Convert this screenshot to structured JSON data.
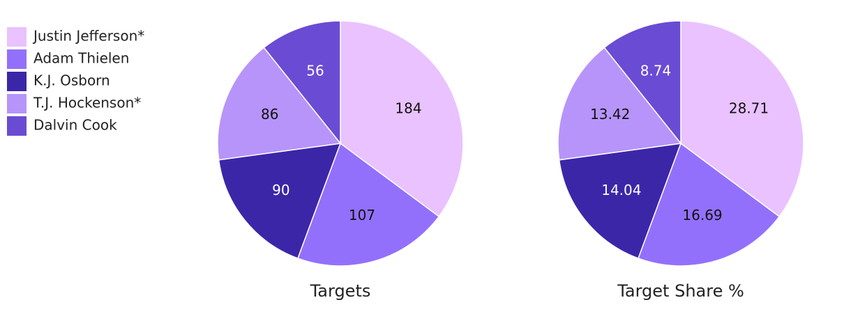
{
  "chart_data": [
    {
      "type": "pie",
      "title": "Targets",
      "categories": [
        "Justin Jefferson*",
        "Adam Thielen",
        "K.J. Osborn",
        "T.J. Hockenson*",
        "Dalvin Cook"
      ],
      "values": [
        184,
        107,
        90,
        86,
        56
      ],
      "colors": [
        "#e9c2ff",
        "#9370fb",
        "#3c26a8",
        "#b794fa",
        "#6a4bd3"
      ]
    },
    {
      "type": "pie",
      "title": "Target Share %",
      "categories": [
        "Justin Jefferson*",
        "Adam Thielen",
        "K.J. Osborn",
        "T.J. Hockenson*",
        "Dalvin Cook"
      ],
      "values": [
        28.71,
        16.69,
        14.04,
        13.42,
        8.74
      ],
      "colors": [
        "#e9c2ff",
        "#9370fb",
        "#3c26a8",
        "#b794fa",
        "#6a4bd3"
      ]
    }
  ]
}
